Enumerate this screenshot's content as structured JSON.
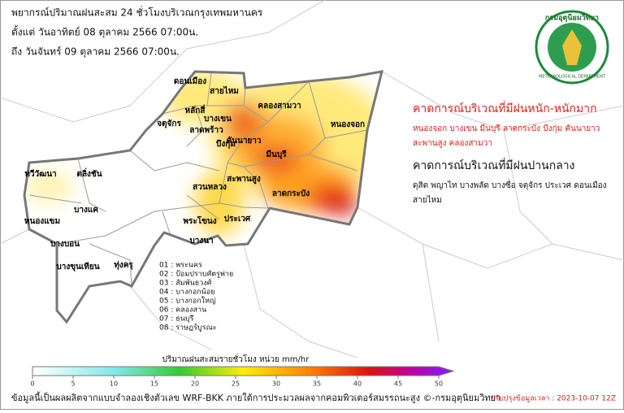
{
  "header": {
    "title": "พยากรณ์ปริมาณฝนสะสม 24 ชั่วโมงบริเวณกรุงเทพมหานคร",
    "from": "ตั้งแต่ วันอาทิตย์ 08 ตุลาคม 2566 07:00น.",
    "to": "ถึง วันจันทร์ 09 ตุลาคม 2566 07:00น."
  },
  "logo": {
    "name": "กรมอุตุนิยมวิทยา",
    "english": "METEOROLOGICAL DEPARTMENT"
  },
  "heavy_rain": {
    "heading": "คาดการณ์บริเวณที่มีฝนหนัก-หนักมาก",
    "areas": [
      "หนองจอก  บางเขน  มีนบุรี  ลาดกระบัง  บึงกุ่ม  คันนายาว",
      "สะพานสูง  คลองสามวา"
    ]
  },
  "moderate_rain": {
    "heading": "คาดการณ์บริเวณที่มีฝนปานกลาง",
    "areas": [
      "ดุสิต  พญาไท  บางพลัด  บางซื่อ  จตุจักร  ประเวศ  ดอนเมือง",
      "สายไหม"
    ]
  },
  "districts": [
    "ดอนเมือง",
    "สายไหม",
    "หลักสี่",
    "บางเขน",
    "คลองสามวา",
    "หนองจอก",
    "จตุจักร",
    "ลาดพร้าว",
    "บึงกุ่ม",
    "คันนายาว",
    "มีนบุรี",
    "สะพานสูง",
    "ลาดกระบัง",
    "ประเวศ",
    "สวนหลวง",
    "พระโขนง",
    "บางนา",
    "ทวีวัฒนา",
    "ตลิ่งชัน",
    "บางแค",
    "หนองแขม",
    "บางบอน",
    "บางขุนเทียน",
    "ทุ่งครุ"
  ],
  "district_codes": [
    "01 : พระนคร",
    "02 : ป้อมปราบศัตรูพ่าย",
    "03 : สัมพันธวงศ์",
    "04 : บางกอกน้อย",
    "05 : บางกอกใหญ่",
    "06 : คลองสาน",
    "07 : ธนบุรี",
    "08 : ราษฎร์บูรณะ"
  ],
  "colorbar": {
    "title": "ปริมาณฝนสะสมรายชั่วโมง หน่วย mm/hr",
    "lim": [
      0,
      50
    ],
    "ticks": [
      0,
      5,
      10,
      15,
      20,
      25,
      30,
      35,
      40,
      45,
      50
    ]
  },
  "footer": {
    "credit": "ข้อมูลนี้เป็นผลผลิตจากแบบจำลองเชิงตัวเลข WRF-BKK ภายใต้การประมวลผลจากคอมพิวเตอร์สมรรถนะสูง ©-กรมอุตุนิยมวิทยา",
    "updated": "ปรับปรุงข้อมูลเวลา : 2023-10-07 12Z"
  }
}
